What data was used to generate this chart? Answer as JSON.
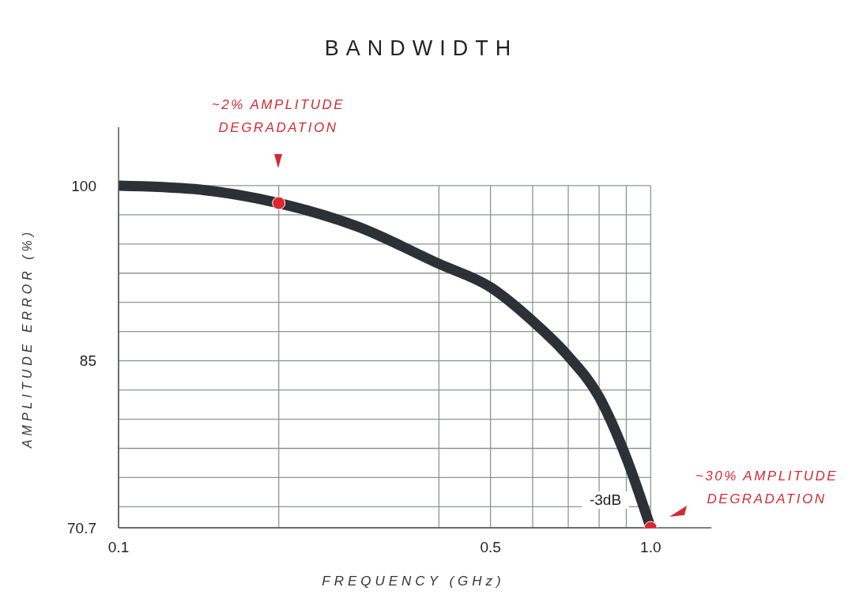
{
  "chart_data": {
    "type": "line",
    "title": "BANDWIDTH",
    "xlabel": "FREQUENCY (GHz)",
    "ylabel": "AMPLITUDE ERROR (%)",
    "log": "x",
    "grid": true,
    "xlim": [
      0.1,
      1.3
    ],
    "ylim": [
      70.7,
      105
    ],
    "xticks": [
      0.1,
      {
        "value": 0.2,
        "label": null
      },
      {
        "value": 0.4,
        "label": null
      },
      0.5,
      {
        "value": 0.6,
        "label": null
      },
      {
        "value": 0.7,
        "label": null
      },
      {
        "value": 0.8,
        "label": null
      },
      {
        "value": 0.9,
        "label": null
      },
      {
        "value": 1.0,
        "label": "1.0"
      }
    ],
    "yticks": [
      70.7,
      {
        "value": 72.5,
        "label": null
      },
      {
        "value": 75,
        "label": null
      },
      {
        "value": 77.5,
        "label": null
      },
      {
        "value": 80,
        "label": null
      },
      {
        "value": 82.5,
        "label": null
      },
      85,
      {
        "value": 87.5,
        "label": null
      },
      {
        "value": 90,
        "label": null
      },
      {
        "value": 92.5,
        "label": null
      },
      {
        "value": 95,
        "label": null
      },
      {
        "value": 97.5,
        "label": null
      },
      100
    ],
    "series": [
      {
        "color": "#2b3137",
        "marker": "none",
        "x": [
          0.1,
          0.139,
          0.2,
          0.281,
          0.4,
          0.5,
          0.6,
          0.7,
          0.8,
          0.9,
          1.0
        ],
        "values": [
          100,
          99.7,
          98.5,
          96.5,
          93.3,
          91.3,
          88.4,
          85.4,
          81.9,
          76.7,
          70.7
        ]
      },
      {
        "type": "scatter",
        "color": "#e0262b",
        "marker": "circle",
        "x": [
          0.2,
          1.0
        ],
        "values": [
          98.5,
          70.7
        ]
      }
    ],
    "annotations": [
      "~2% AMPLITUDE DEGRADATION",
      "~30% AMPLITUDE DEGRADATION",
      "-3dB"
    ]
  }
}
